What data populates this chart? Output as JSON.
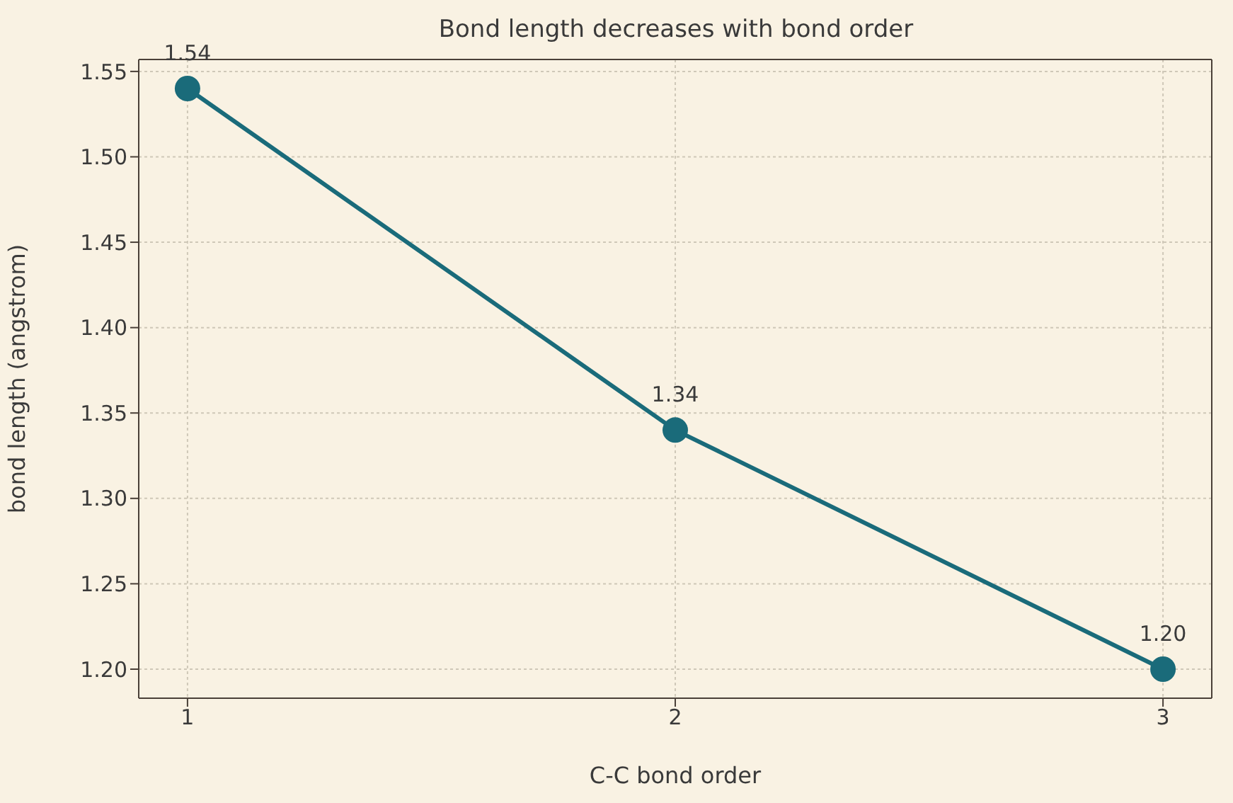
{
  "chart_data": {
    "type": "line",
    "title": "Bond length decreases with bond order",
    "xlabel": "C-C bond order",
    "ylabel": "bond length (angstrom)",
    "x": [
      1,
      2,
      3
    ],
    "series": [
      {
        "color": "#1a6b7a",
        "values": [
          1.54,
          1.34,
          1.2
        ],
        "value_labels": [
          "1.54",
          "1.34",
          "1.20"
        ]
      }
    ],
    "xlim": [
      0.9,
      3.1
    ],
    "xticks": [
      1,
      2,
      3
    ],
    "ylim": [
      1.183,
      1.557
    ],
    "yticks": [
      {
        "value": 1.2,
        "label": "1.20"
      },
      {
        "value": 1.25,
        "label": "1.25"
      },
      {
        "value": 1.3,
        "label": "1.30"
      },
      {
        "value": 1.35,
        "label": "1.35"
      },
      {
        "value": 1.4,
        "label": "1.40"
      },
      {
        "value": 1.45,
        "label": "1.45"
      },
      {
        "value": 1.5,
        "label": "1.50"
      },
      {
        "value": 1.55,
        "label": "1.55"
      }
    ],
    "grid": true,
    "marker": "circle",
    "line_style": "solid",
    "legend": false
  }
}
